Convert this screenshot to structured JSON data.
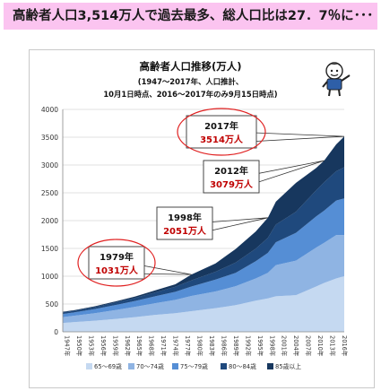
{
  "banner": {
    "text": "高齢者人口3,514万人で過去最多、総人口比は27．7％に･･･"
  },
  "chart_data": {
    "type": "area",
    "title": "高齢者人口推移(万人)",
    "subtitle_lines": [
      "(1947～2017年、人口推計、",
      "10月1日時点、2016～2017年のみ9月15日時点)"
    ],
    "xlabel": "",
    "ylabel": "",
    "ylim": [
      0,
      4000
    ],
    "y_ticks": [
      "0",
      "500",
      "1000",
      "1500",
      "2000",
      "2500",
      "3000",
      "3500",
      "4000"
    ],
    "x_tick_labels": [
      "1947年",
      "1950年",
      "1953年",
      "1956年",
      "1959年",
      "1962年",
      "1965年",
      "1968年",
      "1971年",
      "1974年",
      "1977年",
      "1980年",
      "1983年",
      "1986年",
      "1989年",
      "1992年",
      "1995年",
      "1998年",
      "2001年",
      "2004年",
      "2007年",
      "2010年",
      "2013年",
      "2016年"
    ],
    "x": [
      1947,
      1950,
      1955,
      1960,
      1965,
      1970,
      1975,
      1979,
      1985,
      1990,
      1995,
      1998,
      2000,
      2005,
      2010,
      2012,
      2015,
      2017
    ],
    "stacked": true,
    "series": [
      {
        "name": "65～69歳",
        "color": "#c5d9f1",
        "values": [
          160,
          175,
          200,
          230,
          265,
          305,
          335,
          370,
          425,
          480,
          560,
          600,
          640,
          660,
          815,
          880,
          960,
          1000
        ]
      },
      {
        "name": "70～74歳",
        "color": "#8fb4e3",
        "values": [
          105,
          115,
          135,
          160,
          185,
          210,
          240,
          275,
          300,
          340,
          400,
          460,
          560,
          620,
          700,
          720,
          780,
          740
        ]
      },
      {
        "name": "75～79歳",
        "color": "#558ed5",
        "values": [
          55,
          60,
          75,
          90,
          105,
          125,
          145,
          170,
          215,
          240,
          310,
          360,
          410,
          500,
          560,
          580,
          620,
          660
        ]
      },
      {
        "name": "80～84歳",
        "color": "#1f497d",
        "values": [
          30,
          30,
          35,
          45,
          55,
          70,
          90,
          110,
          140,
          185,
          225,
          270,
          320,
          380,
          470,
          510,
          530,
          560
        ]
      },
      {
        "name": "85歳以上",
        "color": "#17375e",
        "values": [
          10,
          12,
          15,
          20,
          25,
          35,
          45,
          106,
          150,
          245,
          310,
          361,
          410,
          520,
          400,
          389,
          480,
          554
        ]
      }
    ],
    "annotations": [
      {
        "year_label": "2017年",
        "value_label": "3514万人",
        "x": 2017,
        "y": 3514
      },
      {
        "year_label": "2012年",
        "value_label": "3079万人",
        "x": 2012,
        "y": 3079
      },
      {
        "year_label": "1998年",
        "value_label": "2051万人",
        "x": 1998,
        "y": 2051
      },
      {
        "year_label": "1979年",
        "value_label": "1031万人",
        "x": 1979,
        "y": 1031
      }
    ],
    "grid": true,
    "legend_position": "bottom"
  }
}
